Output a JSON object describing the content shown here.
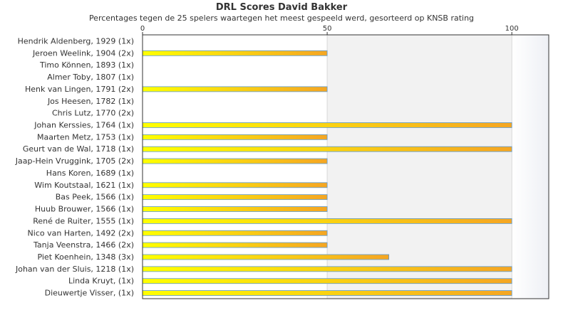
{
  "chart_data": {
    "type": "bar",
    "orientation": "horizontal",
    "title": "DRL Scores David Bakker",
    "subtitle": "Percentages tegen de 25 spelers waartegen het meest gespeeld werd, gesorteerd op KNSB rating",
    "categories": [
      "Hendrik Aldenberg, 1929 (1x)",
      "Jeroen Weelink, 1904 (2x)",
      "Timo Können, 1893 (1x)",
      "Almer Toby, 1807 (1x)",
      "Henk van Lingen, 1791 (2x)",
      "Jos Heesen, 1782 (1x)",
      "Chris Lutz, 1770 (2x)",
      "Johan Kerssies, 1764 (1x)",
      "Maarten Metz, 1753 (1x)",
      "Geurt van de Wal, 1718 (1x)",
      "Jaap-Hein Vruggink, 1705 (2x)",
      "Hans Koren, 1689 (1x)",
      "Wim Koutstaal, 1621 (1x)",
      "Bas Peek, 1566 (1x)",
      "Huub Brouwer, 1566 (1x)",
      "René de Ruiter, 1555 (1x)",
      "Nico van Harten, 1492 (2x)",
      "Tanja Veenstra, 1466 (2x)",
      "Piet Koenhein, 1348 (3x)",
      "Johan van der Sluis, 1218 (1x)",
      "Linda Kruyt,  (1x)",
      "Dieuwertje Visser,  (1x)"
    ],
    "values": [
      0,
      50,
      0,
      0,
      50,
      0,
      0,
      100,
      50,
      100,
      50,
      0,
      50,
      50,
      50,
      100,
      50,
      50,
      66.7,
      100,
      100,
      100
    ],
    "xlim": [
      0,
      110
    ],
    "xticks": [
      0,
      50,
      100
    ],
    "grid": true,
    "legend": "none",
    "colors": {
      "bar_start": "#ffff00",
      "bar_end": "#f5a623",
      "bar_stroke": "#5b9bd5",
      "band": "#f2f2f2",
      "frame": "#333333"
    }
  }
}
